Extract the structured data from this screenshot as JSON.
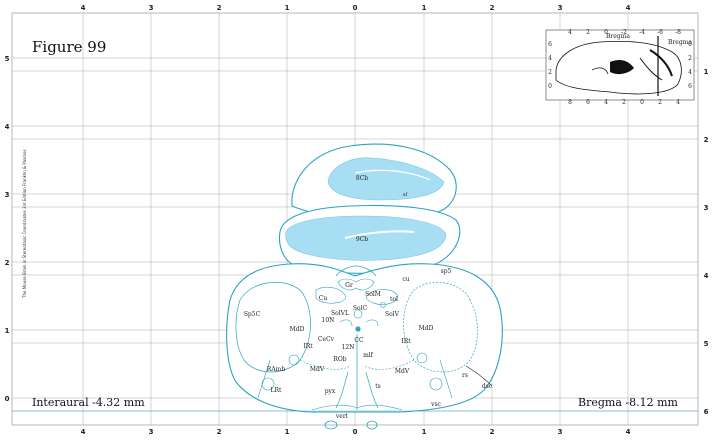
{
  "figure": {
    "title": "Figure 99",
    "interaural": "Interaural -4.32 mm",
    "bregma": "Bregma -8.12 mm",
    "credit": "The Mouse Brain in Stereotaxic Coordinates 3rd Edition  Franklin & Paxinos"
  },
  "axes": {
    "top_ticks": [
      "4",
      "3",
      "2",
      "1",
      "0",
      "1",
      "2",
      "3",
      "4"
    ],
    "bottom_ticks": [
      "4",
      "3",
      "2",
      "1",
      "0",
      "1",
      "2",
      "3",
      "4"
    ],
    "left_ticks": [
      "5",
      "4",
      "3",
      "2",
      "1",
      "0"
    ],
    "right_ticks": [
      "1",
      "2",
      "3",
      "4",
      "5",
      "6"
    ]
  },
  "inset": {
    "label": "Bregma",
    "sub": "Bregma",
    "top_ticks": [
      "4",
      "2",
      "0",
      "-2",
      "-4",
      "-6",
      "-8"
    ],
    "bottom_ticks": [
      "8",
      "6",
      "4",
      "2",
      "0",
      "2",
      "4"
    ],
    "left_ticks": [
      "6",
      "4",
      "2",
      "0"
    ],
    "right_ticks": [
      "0",
      "2",
      "4",
      "6"
    ]
  },
  "labels": {
    "8Cb": "8Cb",
    "9Cb": "9Cb",
    "sf": "sf",
    "Gr": "Gr",
    "cu": "cu",
    "sp5": "sp5",
    "Cu": "Cu",
    "SolM": "SolM",
    "tol": "tol",
    "SolC": "SolC",
    "SolVL": "SolVL",
    "SolV": "SolV",
    "Sp5C": "Sp5C",
    "10N": "10N",
    "MdD_l": "MdD",
    "MdD_r": "MdD",
    "CeCv": "CeCv",
    "CC": "CC",
    "IRt_l": "IRt",
    "IRt_r": "IRt",
    "12N": "12N",
    "ROb": "ROb",
    "mlf": "mlf",
    "RAmb": "RAmb",
    "MdV_l": "MdV",
    "MdV_r": "MdV",
    "ts": "ts",
    "LRt": "LRt",
    "pyx": "pyx",
    "rs": "rs",
    "dsc": "dsc",
    "vsc": "vsc",
    "vert": "vert"
  }
}
